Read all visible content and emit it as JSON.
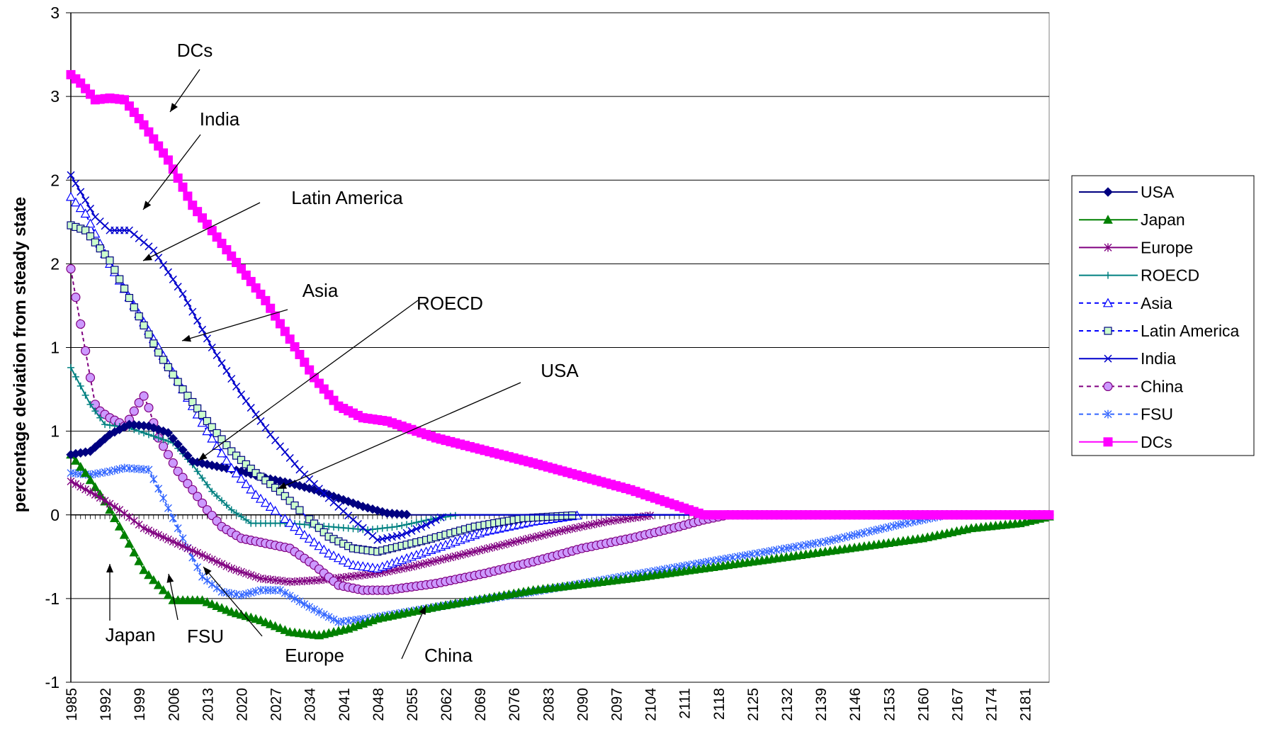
{
  "chart_data": {
    "type": "line",
    "title": "",
    "xlabel": "",
    "ylabel": "percentage deviation from steady state",
    "ytick_labels": [
      "-1",
      "-1",
      "0",
      "1",
      "1",
      "2",
      "2",
      "3",
      "3"
    ],
    "ytick_values": [
      -1.0,
      -0.5,
      0.0,
      0.5,
      1.0,
      1.5,
      2.0,
      2.5,
      3.0
    ],
    "ylim": [
      -1.0,
      3.0
    ],
    "xlim": [
      1985,
      2186
    ],
    "xtick_labels": [
      "1985",
      "1992",
      "1999",
      "2006",
      "2013",
      "2020",
      "2027",
      "2034",
      "2041",
      "2048",
      "2055",
      "2062",
      "2069",
      "2076",
      "2083",
      "2090",
      "2097",
      "2104",
      "2111",
      "2118",
      "2125",
      "2132",
      "2139",
      "2146",
      "2153",
      "2160",
      "2167",
      "2174",
      "2181"
    ],
    "grid": "horizontal",
    "legend_position": "right",
    "series": [
      {
        "name": "USA",
        "color": "#000080",
        "marker": "diamond",
        "dash": false,
        "points": [
          [
            1985,
            0.36
          ],
          [
            1989,
            0.38
          ],
          [
            1993,
            0.48
          ],
          [
            1997,
            0.54
          ],
          [
            2001,
            0.53
          ],
          [
            2005,
            0.49
          ],
          [
            2010,
            0.32
          ],
          [
            2015,
            0.29
          ],
          [
            2020,
            0.26
          ],
          [
            2025,
            0.22
          ],
          [
            2030,
            0.19
          ],
          [
            2035,
            0.15
          ],
          [
            2040,
            0.1
          ],
          [
            2045,
            0.05
          ],
          [
            2050,
            0.01
          ],
          [
            2055,
            0.0
          ],
          [
            2062,
            0.0
          ],
          [
            2186,
            0.0
          ]
        ]
      },
      {
        "name": "Japan",
        "color": "#008000",
        "marker": "triangle",
        "dash": false,
        "points": [
          [
            1985,
            0.36
          ],
          [
            1988,
            0.25
          ],
          [
            1992,
            0.08
          ],
          [
            1996,
            -0.12
          ],
          [
            2000,
            -0.33
          ],
          [
            2003,
            -0.42
          ],
          [
            2006,
            -0.51
          ],
          [
            2012,
            -0.51
          ],
          [
            2018,
            -0.58
          ],
          [
            2024,
            -0.63
          ],
          [
            2030,
            -0.7
          ],
          [
            2036,
            -0.72
          ],
          [
            2042,
            -0.68
          ],
          [
            2048,
            -0.62
          ],
          [
            2060,
            -0.55
          ],
          [
            2080,
            -0.45
          ],
          [
            2100,
            -0.38
          ],
          [
            2120,
            -0.3
          ],
          [
            2140,
            -0.22
          ],
          [
            2160,
            -0.14
          ],
          [
            2170,
            -0.08
          ],
          [
            2180,
            -0.05
          ],
          [
            2186,
            -0.01
          ]
        ]
      },
      {
        "name": "Europe",
        "color": "#800080",
        "marker": "star",
        "dash": false,
        "points": [
          [
            1985,
            0.2
          ],
          [
            1990,
            0.12
          ],
          [
            1995,
            0.03
          ],
          [
            2000,
            -0.08
          ],
          [
            2006,
            -0.16
          ],
          [
            2012,
            -0.24
          ],
          [
            2018,
            -0.32
          ],
          [
            2024,
            -0.38
          ],
          [
            2030,
            -0.4
          ],
          [
            2036,
            -0.39
          ],
          [
            2042,
            -0.37
          ],
          [
            2048,
            -0.35
          ],
          [
            2055,
            -0.31
          ],
          [
            2065,
            -0.24
          ],
          [
            2075,
            -0.17
          ],
          [
            2085,
            -0.1
          ],
          [
            2095,
            -0.04
          ],
          [
            2105,
            0.0
          ],
          [
            2186,
            0.0
          ]
        ]
      },
      {
        "name": "ROECD",
        "color": "#008080",
        "marker": "plus",
        "dash": false,
        "points": [
          [
            1985,
            0.88
          ],
          [
            1989,
            0.66
          ],
          [
            1992,
            0.54
          ],
          [
            1997,
            0.52
          ],
          [
            2002,
            0.47
          ],
          [
            2006,
            0.43
          ],
          [
            2010,
            0.3
          ],
          [
            2014,
            0.14
          ],
          [
            2018,
            0.03
          ],
          [
            2022,
            -0.05
          ],
          [
            2030,
            -0.05
          ],
          [
            2038,
            -0.07
          ],
          [
            2046,
            -0.09
          ],
          [
            2052,
            -0.07
          ],
          [
            2060,
            -0.02
          ],
          [
            2065,
            0.0
          ],
          [
            2186,
            0.0
          ]
        ]
      },
      {
        "name": "Asia",
        "color": "#0000FF",
        "marker": "triangle-open",
        "dash": true,
        "points": [
          [
            1985,
            1.9
          ],
          [
            1988,
            1.8
          ],
          [
            1993,
            1.5
          ],
          [
            1998,
            1.25
          ],
          [
            2003,
            1.0
          ],
          [
            2008,
            0.75
          ],
          [
            2013,
            0.5
          ],
          [
            2018,
            0.28
          ],
          [
            2023,
            0.12
          ],
          [
            2028,
            0.0
          ],
          [
            2033,
            -0.12
          ],
          [
            2038,
            -0.23
          ],
          [
            2043,
            -0.3
          ],
          [
            2048,
            -0.32
          ],
          [
            2060,
            -0.2
          ],
          [
            2070,
            -0.1
          ],
          [
            2080,
            -0.04
          ],
          [
            2090,
            0.0
          ],
          [
            2186,
            0.0
          ]
        ]
      },
      {
        "name": "Latin America",
        "color": "#0000FF",
        "marker": "square-open",
        "dash": true,
        "points": [
          [
            1985,
            1.73
          ],
          [
            1988,
            1.7
          ],
          [
            1993,
            1.52
          ],
          [
            1998,
            1.24
          ],
          [
            2003,
            0.97
          ],
          [
            2008,
            0.75
          ],
          [
            2013,
            0.56
          ],
          [
            2018,
            0.38
          ],
          [
            2023,
            0.25
          ],
          [
            2028,
            0.14
          ],
          [
            2033,
            0.0
          ],
          [
            2038,
            -0.13
          ],
          [
            2043,
            -0.2
          ],
          [
            2048,
            -0.22
          ],
          [
            2058,
            -0.15
          ],
          [
            2068,
            -0.07
          ],
          [
            2078,
            -0.02
          ],
          [
            2090,
            0.0
          ],
          [
            2186,
            0.0
          ]
        ]
      },
      {
        "name": "India",
        "color": "#0000CC",
        "marker": "x",
        "dash": false,
        "points": [
          [
            1985,
            2.03
          ],
          [
            1990,
            1.78
          ],
          [
            1993,
            1.7
          ],
          [
            1997,
            1.7
          ],
          [
            2002,
            1.58
          ],
          [
            2008,
            1.32
          ],
          [
            2014,
            1.0
          ],
          [
            2020,
            0.72
          ],
          [
            2026,
            0.48
          ],
          [
            2032,
            0.27
          ],
          [
            2038,
            0.1
          ],
          [
            2043,
            -0.03
          ],
          [
            2048,
            -0.15
          ],
          [
            2053,
            -0.12
          ],
          [
            2058,
            -0.06
          ],
          [
            2062,
            0.0
          ],
          [
            2186,
            0.0
          ]
        ]
      },
      {
        "name": "China",
        "color": "#800080",
        "marker": "circle-open",
        "dash": true,
        "points": [
          [
            1985,
            1.47
          ],
          [
            1986,
            1.3
          ],
          [
            1987,
            1.14
          ],
          [
            1988,
            0.98
          ],
          [
            1989,
            0.82
          ],
          [
            1990,
            0.66
          ],
          [
            1991,
            0.62
          ],
          [
            1993,
            0.58
          ],
          [
            1995,
            0.55
          ],
          [
            1996,
            0.53
          ],
          [
            1997,
            0.57
          ],
          [
            1998,
            0.62
          ],
          [
            1999,
            0.67
          ],
          [
            2000,
            0.71
          ],
          [
            2001,
            0.64
          ],
          [
            2002,
            0.55
          ],
          [
            2003,
            0.46
          ],
          [
            2005,
            0.36
          ],
          [
            2007,
            0.26
          ],
          [
            2010,
            0.15
          ],
          [
            2013,
            0.03
          ],
          [
            2016,
            -0.07
          ],
          [
            2020,
            -0.14
          ],
          [
            2025,
            -0.17
          ],
          [
            2030,
            -0.2
          ],
          [
            2035,
            -0.3
          ],
          [
            2040,
            -0.42
          ],
          [
            2045,
            -0.45
          ],
          [
            2050,
            -0.45
          ],
          [
            2060,
            -0.41
          ],
          [
            2070,
            -0.35
          ],
          [
            2080,
            -0.28
          ],
          [
            2090,
            -0.2
          ],
          [
            2100,
            -0.14
          ],
          [
            2110,
            -0.07
          ],
          [
            2115,
            -0.03
          ],
          [
            2120,
            0.0
          ],
          [
            2186,
            0.0
          ]
        ]
      },
      {
        "name": "FSU",
        "color": "#3366FF",
        "marker": "asterisk",
        "dash": true,
        "points": [
          [
            1985,
            0.25
          ],
          [
            1989,
            0.24
          ],
          [
            1993,
            0.26
          ],
          [
            1996,
            0.28
          ],
          [
            2001,
            0.27
          ],
          [
            2004,
            0.1
          ],
          [
            2008,
            -0.14
          ],
          [
            2012,
            -0.37
          ],
          [
            2016,
            -0.46
          ],
          [
            2020,
            -0.48
          ],
          [
            2024,
            -0.45
          ],
          [
            2028,
            -0.45
          ],
          [
            2034,
            -0.55
          ],
          [
            2040,
            -0.64
          ],
          [
            2046,
            -0.62
          ],
          [
            2060,
            -0.55
          ],
          [
            2080,
            -0.46
          ],
          [
            2100,
            -0.36
          ],
          [
            2120,
            -0.26
          ],
          [
            2140,
            -0.16
          ],
          [
            2155,
            -0.06
          ],
          [
            2165,
            0.0
          ],
          [
            2186,
            0.0
          ]
        ]
      },
      {
        "name": "DCs",
        "color": "#FF00FF",
        "marker": "square",
        "dash": false,
        "points": [
          [
            1985,
            2.63
          ],
          [
            1987,
            2.58
          ],
          [
            1990,
            2.48
          ],
          [
            1993,
            2.49
          ],
          [
            1996,
            2.48
          ],
          [
            2000,
            2.33
          ],
          [
            2005,
            2.12
          ],
          [
            2010,
            1.85
          ],
          [
            2015,
            1.66
          ],
          [
            2020,
            1.47
          ],
          [
            2025,
            1.28
          ],
          [
            2030,
            1.05
          ],
          [
            2035,
            0.82
          ],
          [
            2040,
            0.65
          ],
          [
            2045,
            0.58
          ],
          [
            2050,
            0.56
          ],
          [
            2060,
            0.46
          ],
          [
            2080,
            0.31
          ],
          [
            2100,
            0.15
          ],
          [
            2115,
            0.0
          ],
          [
            2186,
            0.0
          ]
        ]
      }
    ],
    "annotations": [
      {
        "text": "DCs"
      },
      {
        "text": "India"
      },
      {
        "text": "Latin America"
      },
      {
        "text": "Asia"
      },
      {
        "text": "ROECD"
      },
      {
        "text": "USA"
      },
      {
        "text": "Japan"
      },
      {
        "text": "FSU"
      },
      {
        "text": "Europe"
      },
      {
        "text": "China"
      }
    ]
  }
}
